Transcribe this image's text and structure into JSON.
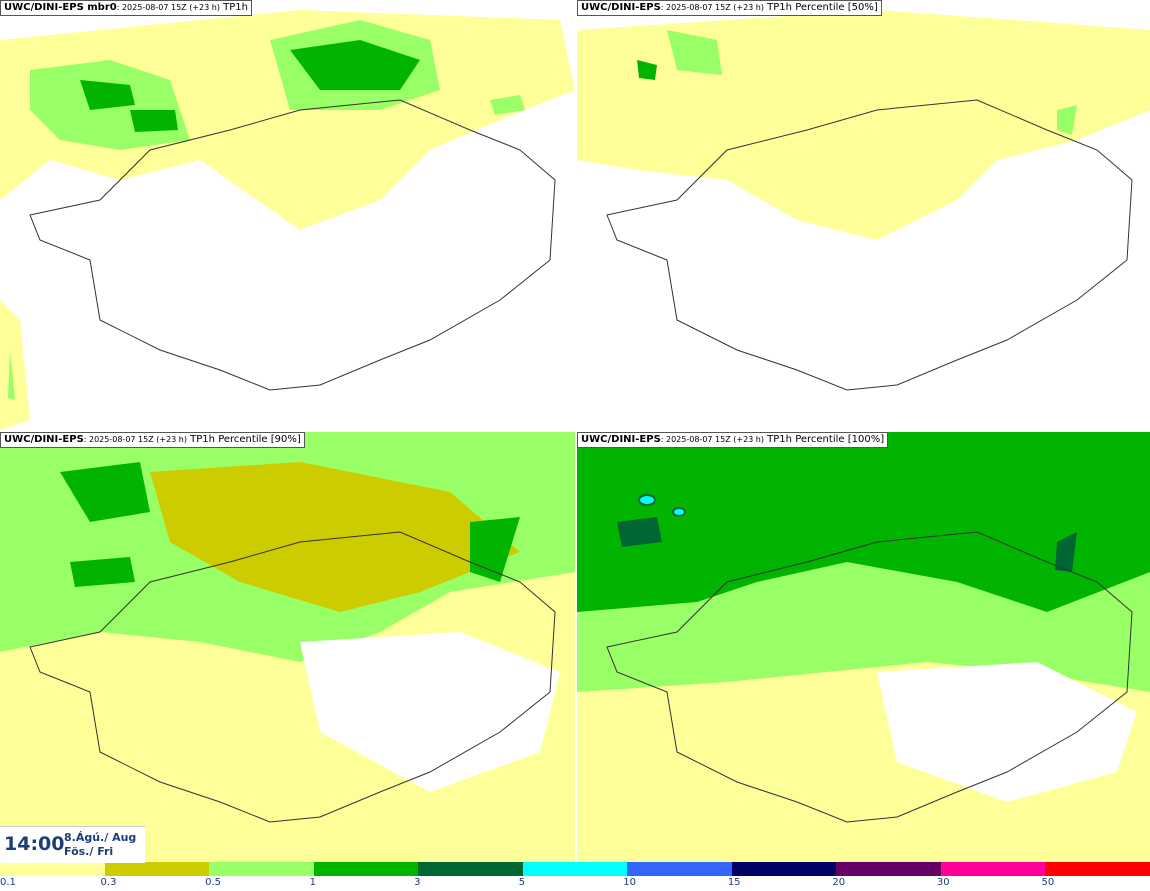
{
  "panels": [
    {
      "model": "UWC/DINI-EPS mbr0",
      "info": ": 2025-08-07 15Z (+23 h)",
      "field": "TP1h"
    },
    {
      "model": "UWC/DINI-EPS",
      "info": ": 2025-08-07 15Z (+23 h)",
      "field": "TP1h Percentile [50%]"
    },
    {
      "model": "UWC/DINI-EPS",
      "info": ": 2025-08-07 15Z (+23 h)",
      "field": "TP1h Percentile [90%]"
    },
    {
      "model": "UWC/DINI-EPS",
      "info": ": 2025-08-07 15Z (+23 h)",
      "field": "TP1h Percentile [100%]"
    }
  ],
  "valid_time": {
    "time": "14:00",
    "date": "8.Ágú./ Aug",
    "day": "Fös./ Fri"
  },
  "legend": {
    "ticks": [
      "0.1",
      "0.3",
      "0.5",
      "1",
      "3",
      "5",
      "10",
      "15",
      "20",
      "30",
      "50"
    ],
    "colors": [
      "#ffff99",
      "#cccc00",
      "#99ff66",
      "#00b400",
      "#006633",
      "#00ffff",
      "#3366ff",
      "#000066",
      "#660066",
      "#ff0099",
      "#ff0000"
    ]
  }
}
